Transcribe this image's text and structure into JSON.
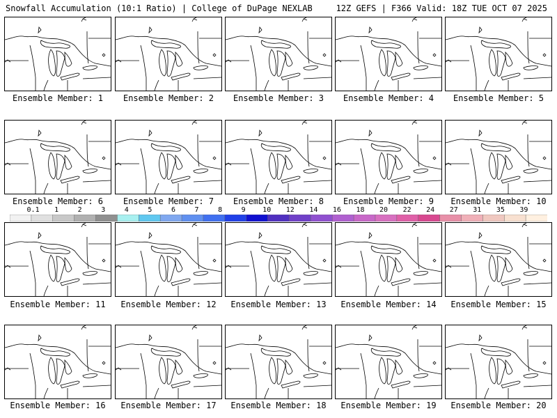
{
  "header": {
    "left": "Snowfall Accumulation (10:1 Ratio) | College of DuPage NEXLAB",
    "right": "12Z GEFS | F366 Valid: 18Z TUE OCT 07 2025"
  },
  "label_prefix": "Ensemble Member: ",
  "members": [
    {
      "id": 1,
      "label": "Ensemble Member: 1"
    },
    {
      "id": 2,
      "label": "Ensemble Member: 2"
    },
    {
      "id": 3,
      "label": "Ensemble Member: 3"
    },
    {
      "id": 4,
      "label": "Ensemble Member: 4"
    },
    {
      "id": 5,
      "label": "Ensemble Member: 5"
    },
    {
      "id": 6,
      "label": "Ensemble Member: 6"
    },
    {
      "id": 7,
      "label": "Ensemble Member: 7"
    },
    {
      "id": 8,
      "label": "Ensemble Member: 8"
    },
    {
      "id": 9,
      "label": "Ensemble Member: 9"
    },
    {
      "id": 10,
      "label": "Ensemble Member: 10"
    },
    {
      "id": 11,
      "label": "Ensemble Member: 11"
    },
    {
      "id": 12,
      "label": "Ensemble Member: 12"
    },
    {
      "id": 13,
      "label": "Ensemble Member: 13"
    },
    {
      "id": 14,
      "label": "Ensemble Member: 14"
    },
    {
      "id": 15,
      "label": "Ensemble Member: 15"
    },
    {
      "id": 16,
      "label": "Ensemble Member: 16"
    },
    {
      "id": 17,
      "label": "Ensemble Member: 17"
    },
    {
      "id": 18,
      "label": "Ensemble Member: 18"
    },
    {
      "id": 19,
      "label": "Ensemble Member: 19"
    },
    {
      "id": 20,
      "label": "Ensemble Member: 20"
    }
  ],
  "chart_data": {
    "type": "heatmap",
    "title": "Snowfall Accumulation (10:1 Ratio)",
    "subtitle": "12Z GEFS | F366 Valid: 18Z TUE OCT 07 2025",
    "source": "College of DuPage NEXLAB",
    "colorbar": {
      "ticks": [
        "0.1",
        "1",
        "2",
        "3",
        "4",
        "5",
        "6",
        "7",
        "8",
        "9",
        "10",
        "12",
        "14",
        "16",
        "18",
        "20",
        "22",
        "24",
        "27",
        "31",
        "35",
        "39"
      ],
      "colors": [
        "#f2f2f2",
        "#e0e0e0",
        "#c8c8c8",
        "#b0b0b0",
        "#909090",
        "#a8f0f0",
        "#60c8f0",
        "#80a8f0",
        "#6090f0",
        "#4070f0",
        "#2040e8",
        "#1010d0",
        "#5030c0",
        "#7040c8",
        "#9050d0",
        "#b060d0",
        "#c868c8",
        "#d870c0",
        "#e060a8",
        "#d84890",
        "#e890a8",
        "#f0b0b8",
        "#f0c8c0",
        "#f8e0d0",
        "#fff0e0"
      ]
    }
  }
}
